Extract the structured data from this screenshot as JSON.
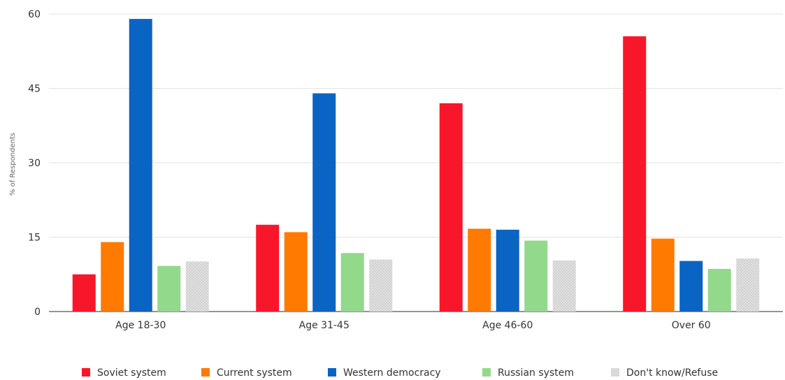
{
  "chart_data": {
    "type": "bar",
    "title": "",
    "xlabel": "",
    "ylabel": "% of Respondents",
    "ylim": [
      0,
      60
    ],
    "yticks": [
      0,
      15,
      30,
      45,
      60
    ],
    "grid": true,
    "legend_position": "bottom",
    "categories": [
      "Age 18-30",
      "Age 31-45",
      "Age 46-60",
      "Over 60"
    ],
    "series": [
      {
        "name": "Soviet system",
        "color": "#f8172a",
        "values": [
          7.5,
          17.5,
          42,
          55.5
        ]
      },
      {
        "name": "Current system",
        "color": "#ff7a00",
        "values": [
          14,
          16,
          16.7,
          14.7
        ]
      },
      {
        "name": "Western democracy",
        "color": "#0a64c4",
        "values": [
          59,
          44,
          16.5,
          10.2
        ]
      },
      {
        "name": "Russian system",
        "color": "#92d98b",
        "values": [
          9.2,
          11.8,
          14.3,
          8.6
        ]
      },
      {
        "name": "Don't know/Refuse",
        "color": "#d9d9d9",
        "pattern": "dotted",
        "values": [
          10.1,
          10.5,
          10.3,
          10.7
        ]
      }
    ]
  }
}
